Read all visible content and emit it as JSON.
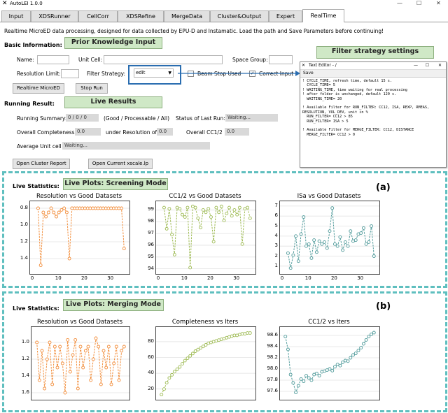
{
  "window": {
    "title": "AutoLEI 1.0.0",
    "minimize": "—",
    "maximize": "☐",
    "close": "✕"
  },
  "tabs": [
    {
      "label": "Input"
    },
    {
      "label": "XDSRunner"
    },
    {
      "label": "CellCorr"
    },
    {
      "label": "XDSRefine"
    },
    {
      "label": "MergeData"
    },
    {
      "label": "Cluster&Output"
    },
    {
      "label": "Expert"
    },
    {
      "label": "RealTime",
      "active": true
    }
  ],
  "intro": "Realtime MicroED data processing, designed for data collected by EPU-D and Instamatic. Load the path and Save Parameters before continuing!",
  "basic": {
    "heading": "Basic Information:",
    "name_label": "Name:",
    "name_value": "",
    "unit_cell_label": "Unit Cell:",
    "unit_cell_value": "",
    "space_group_label": "Space Group:",
    "space_group_value": "",
    "res_limit_label": "Resolution Limit:",
    "res_limit_value": "",
    "filter_label": "Filter Strategy:",
    "filter_value": "edit",
    "beam_stop_label": "Beam Stop Used",
    "beam_stop_checked": false,
    "correct_input_label": "Correct Input",
    "correct_input_checked": true,
    "realtime_button": "Realtime MicroED",
    "stop_button": "Stop Run"
  },
  "running": {
    "heading": "Running Result:",
    "summary_label": "Running Summary:",
    "summary_value": "0 / 0 / 0",
    "summary_hint": "(Good / Processable / All)",
    "status_label": "Status of Last Run:",
    "status_value": "Waiting...",
    "completeness_label": "Overall Completeness:",
    "completeness_value": "0.0",
    "under_res_label": "under Resolution of",
    "under_res_value": "0.0",
    "cc12_label": "Overall CC1/2",
    "cc12_value": "0.0",
    "avg_cell_label": "Average Unit cell",
    "avg_cell_value": "Waiting...",
    "open_cluster_button": "Open Cluster Report",
    "open_xscale_button": "Open Current xscale.lp"
  },
  "annotations": {
    "prior_knowledge": "Prior Knowledge Input",
    "live_results": "Live Results",
    "filter_strategy": "Filter strategy settings",
    "screening_mode": "Live Plots: Screening Mode",
    "merging_mode": "Live Plots: Merging Mode",
    "panel_a": "(a)",
    "panel_b": "(b)",
    "live_stats": "Live Statistics:"
  },
  "text_editor": {
    "title": "Text Editor - /",
    "menu": "Save",
    "content": "! CYCLE_TIME, refresh time, default 15 s.\n  CYCLE_TIME= 5\n! WAITING_TIME, time waiting for real processing\n! after folder is unchanged, default 120 s.\n  WAITING_TIME= 20\n\n! Available Filter for RUN_FILTER: CC12, ISA, REXP, RMEAS,\nRESOLUTION, VOL_DEV, unit in %\n  RUN_FILTER= CC12 > 85\n  RUN_FILTER= ISA > 5\n\n! Available Filter for MERGE_FILTER: CC12, DISTANCE\n  MERGE_FILTER= CC12 > 0"
  },
  "colors": {
    "orange": "#f28e3c",
    "olive": "#9dba52",
    "teal": "#4f9a9a",
    "annotation_green": "#cfe8c6",
    "dash_teal": "#5fbfbf",
    "blue_highlight": "#2a6db0"
  },
  "chart_data": [
    {
      "type": "line",
      "title": "Resolution vs Good Datasets",
      "color": "#f28e3c",
      "inverted_y": true,
      "ylim": [
        1.55,
        0.75
      ],
      "yticks": [
        "0.8",
        "1.0",
        "1.2",
        "1.4"
      ],
      "ytick_values": [
        0.8,
        1.0,
        1.2,
        1.4
      ],
      "xlim": [
        0,
        36
      ],
      "xticks": [
        "0",
        "10",
        "20",
        "30"
      ],
      "xtick_values": [
        0,
        10,
        20,
        30
      ],
      "x": [
        2,
        3,
        4,
        5,
        6,
        7,
        8,
        9,
        10,
        11,
        12,
        13,
        14,
        15,
        16,
        17,
        18,
        19,
        20,
        21,
        22,
        23,
        24,
        25,
        26,
        27,
        28,
        29,
        30,
        31,
        32,
        33,
        34,
        35
      ],
      "values": [
        0.8,
        1.48,
        0.85,
        0.9,
        0.85,
        0.8,
        0.85,
        0.9,
        0.85,
        0.82,
        0.8,
        0.85,
        1.4,
        0.8,
        0.8,
        0.8,
        0.8,
        0.8,
        0.8,
        0.8,
        0.8,
        0.8,
        0.8,
        0.8,
        0.8,
        0.8,
        0.8,
        0.8,
        0.8,
        0.8,
        0.8,
        0.8,
        0.8,
        1.28
      ]
    },
    {
      "type": "line",
      "title": "CC1/2 vs Good Datasets",
      "color": "#9dba52",
      "ylim": [
        93.8,
        99.5
      ],
      "yticks": [
        "94",
        "95",
        "96",
        "97",
        "98",
        "99"
      ],
      "ytick_values": [
        94,
        95,
        96,
        97,
        98,
        99
      ],
      "xlim": [
        0,
        36
      ],
      "xticks": [
        "0",
        "10",
        "20",
        "30"
      ],
      "xtick_values": [
        0,
        10,
        20,
        30
      ],
      "x": [
        2,
        3,
        4,
        5,
        6,
        7,
        8,
        9,
        10,
        11,
        12,
        13,
        14,
        15,
        16,
        17,
        18,
        19,
        20,
        21,
        22,
        23,
        24,
        25,
        26,
        27,
        28,
        29,
        30,
        31,
        32,
        33,
        34,
        35
      ],
      "values": [
        99.2,
        97.4,
        99.1,
        96.9,
        95.2,
        99.2,
        99.1,
        98.6,
        98.4,
        99.2,
        94.1,
        99.3,
        99.2,
        98.3,
        97.5,
        99.0,
        98.8,
        99.1,
        98.4,
        96.3,
        99.2,
        98.8,
        99.3,
        98.1,
        98.7,
        99.2,
        98.5,
        99.0,
        98.6,
        99.2,
        96.1,
        99.1,
        99.2,
        98.3
      ]
    },
    {
      "type": "line",
      "title": "ISa vs Good Datasets",
      "color": "#4f9a9a",
      "ylim": [
        0.5,
        7.2
      ],
      "yticks": [
        "1",
        "2",
        "3",
        "4",
        "5",
        "6",
        "7"
      ],
      "ytick_values": [
        1,
        2,
        3,
        4,
        5,
        6,
        7
      ],
      "xlim": [
        0,
        36
      ],
      "xticks": [
        "0",
        "10",
        "20",
        "30"
      ],
      "xtick_values": [
        0,
        10,
        20,
        30
      ],
      "x": [
        2,
        3,
        4,
        5,
        6,
        7,
        8,
        9,
        10,
        11,
        12,
        13,
        14,
        15,
        16,
        17,
        18,
        19,
        20,
        21,
        22,
        23,
        24,
        25,
        26,
        27,
        28,
        29,
        30,
        31,
        32,
        33,
        34,
        35
      ],
      "values": [
        2.3,
        0.8,
        2.1,
        4.0,
        1.5,
        4.2,
        5.9,
        3.0,
        3.2,
        1.8,
        3.6,
        2.4,
        3.5,
        3.2,
        3.4,
        2.8,
        4.5,
        6.8,
        3.2,
        3.0,
        3.9,
        2.6,
        3.4,
        3.0,
        4.5,
        3.5,
        3.6,
        4.2,
        4.3,
        4.8,
        3.2,
        3.4,
        5.0,
        2.0
      ]
    },
    {
      "type": "line",
      "title": "Resolution vs Good Datasets",
      "color": "#f28e3c",
      "inverted_y": true,
      "ylim": [
        1.65,
        0.85
      ],
      "yticks": [
        "1.0",
        "1.2",
        "1.4",
        "1.6"
      ],
      "ytick_values": [
        1.0,
        1.2,
        1.4,
        1.6
      ],
      "xlim": [
        0,
        36
      ],
      "xticks": [],
      "xtick_values": [],
      "x": [
        1,
        2,
        3,
        4,
        5,
        6,
        7,
        8,
        9,
        10,
        11,
        12,
        13,
        14,
        15,
        16,
        17,
        18,
        19,
        20,
        21,
        22,
        23,
        24,
        25,
        26,
        27,
        28,
        29,
        30,
        31,
        32,
        33,
        34,
        35
      ],
      "values": [
        1.0,
        1.45,
        1.1,
        1.55,
        1.2,
        1.0,
        1.5,
        1.05,
        1.3,
        1.05,
        1.25,
        1.6,
        0.97,
        1.35,
        1.15,
        0.97,
        1.55,
        1.05,
        1.3,
        1.1,
        1.05,
        1.45,
        1.2,
        0.95,
        1.05,
        1.5,
        1.1,
        1.3,
        1.05,
        1.5,
        1.25,
        1.05,
        1.45,
        1.1,
        1.05
      ]
    },
    {
      "type": "line",
      "title": "Completeness vs Iters",
      "color": "#9dba52",
      "ylim": [
        10,
        95
      ],
      "yticks": [
        "20",
        "40",
        "60",
        "80"
      ],
      "ytick_values": [
        20,
        40,
        60,
        80
      ],
      "xlim": [
        0,
        36
      ],
      "xticks": [],
      "xtick_values": [],
      "x": [
        1,
        2,
        3,
        4,
        5,
        6,
        7,
        8,
        9,
        10,
        11,
        12,
        13,
        14,
        15,
        16,
        17,
        18,
        19,
        20,
        21,
        22,
        23,
        24,
        25,
        26,
        27,
        28,
        29,
        30,
        31,
        32,
        33,
        34,
        35
      ],
      "values": [
        13,
        20,
        28,
        34,
        38,
        42,
        45,
        48,
        52,
        56,
        59,
        62,
        65,
        68,
        70,
        72,
        74,
        76,
        78,
        79,
        80,
        81,
        82,
        83,
        84,
        85,
        86,
        87,
        88,
        88,
        89,
        90,
        90,
        91,
        91
      ]
    },
    {
      "type": "line",
      "title": "CC1/2 vs Iters",
      "color": "#4f9a9a",
      "ylim": [
        97.5,
        98.7
      ],
      "yticks": [
        "97.6",
        "97.8",
        "98.0",
        "98.2",
        "98.4",
        "98.6"
      ],
      "ytick_values": [
        97.6,
        97.8,
        98.0,
        98.2,
        98.4,
        98.6
      ],
      "xlim": [
        0,
        36
      ],
      "xticks": [],
      "xtick_values": [],
      "x": [
        1,
        2,
        3,
        4,
        5,
        6,
        7,
        8,
        9,
        10,
        11,
        12,
        13,
        14,
        15,
        16,
        17,
        18,
        19,
        20,
        21,
        22,
        23,
        24,
        25,
        26,
        27,
        28,
        29,
        30,
        31,
        32,
        33,
        34,
        35
      ],
      "values": [
        98.58,
        98.35,
        97.9,
        97.75,
        97.58,
        97.7,
        97.82,
        97.78,
        97.88,
        97.84,
        97.8,
        97.9,
        97.92,
        97.88,
        97.95,
        97.96,
        97.98,
        98.0,
        97.97,
        98.04,
        98.08,
        98.06,
        98.12,
        98.15,
        98.14,
        98.2,
        98.25,
        98.28,
        98.33,
        98.38,
        98.45,
        98.52,
        98.58,
        98.62,
        98.65
      ]
    }
  ]
}
